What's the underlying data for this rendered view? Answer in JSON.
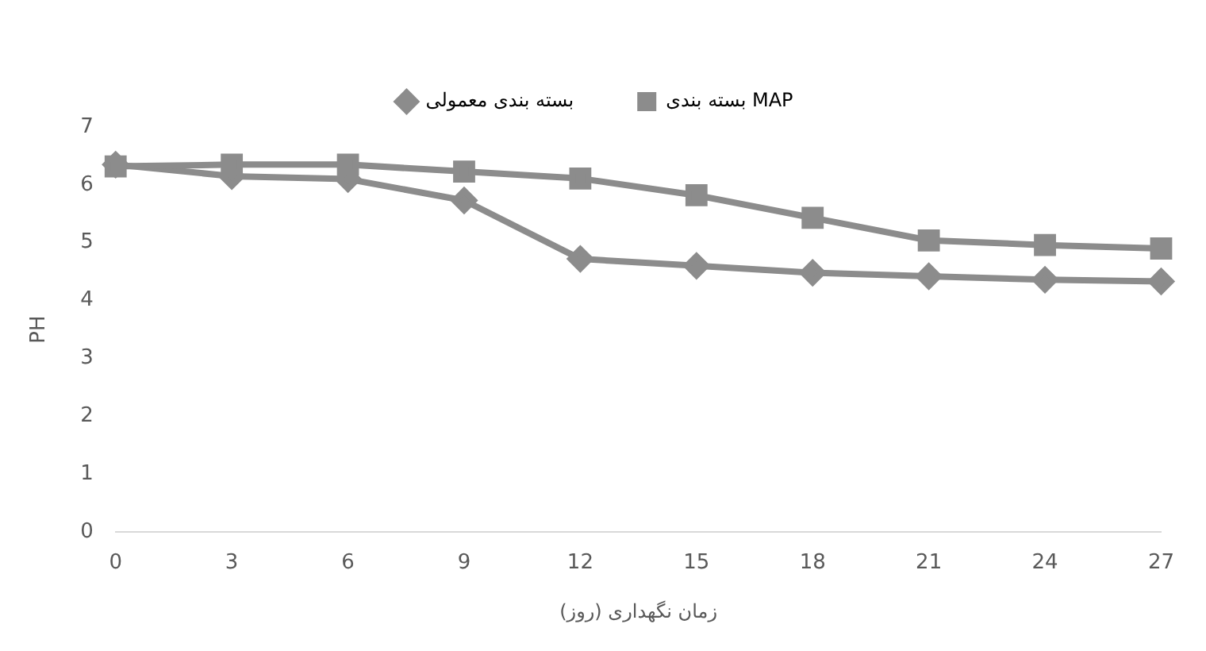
{
  "chart_data": {
    "type": "line",
    "xlabel": "زمان نگهداری (روز)",
    "ylabel": "PH",
    "categories": [
      "0",
      "3",
      "6",
      "9",
      "12",
      "15",
      "18",
      "21",
      "24",
      "27"
    ],
    "series": [
      {
        "name": "بسته بندی معمولی",
        "color": "#8c8c8c",
        "marker": "diamond",
        "values": [
          6.35,
          6.15,
          6.1,
          5.73,
          4.72,
          4.6,
          4.48,
          4.42,
          4.36,
          4.33
        ]
      },
      {
        "name": "بسته بندی MAP",
        "color": "#8c8c8c",
        "marker": "square",
        "values": [
          6.32,
          6.35,
          6.35,
          6.23,
          6.11,
          5.82,
          5.43,
          5.04,
          4.96,
          4.9
        ]
      }
    ],
    "ylim": [
      0,
      7
    ],
    "yticks": [
      0,
      1,
      2,
      3,
      4,
      5,
      6,
      7
    ],
    "grid": false,
    "legend": "top",
    "line_style": "solid"
  }
}
